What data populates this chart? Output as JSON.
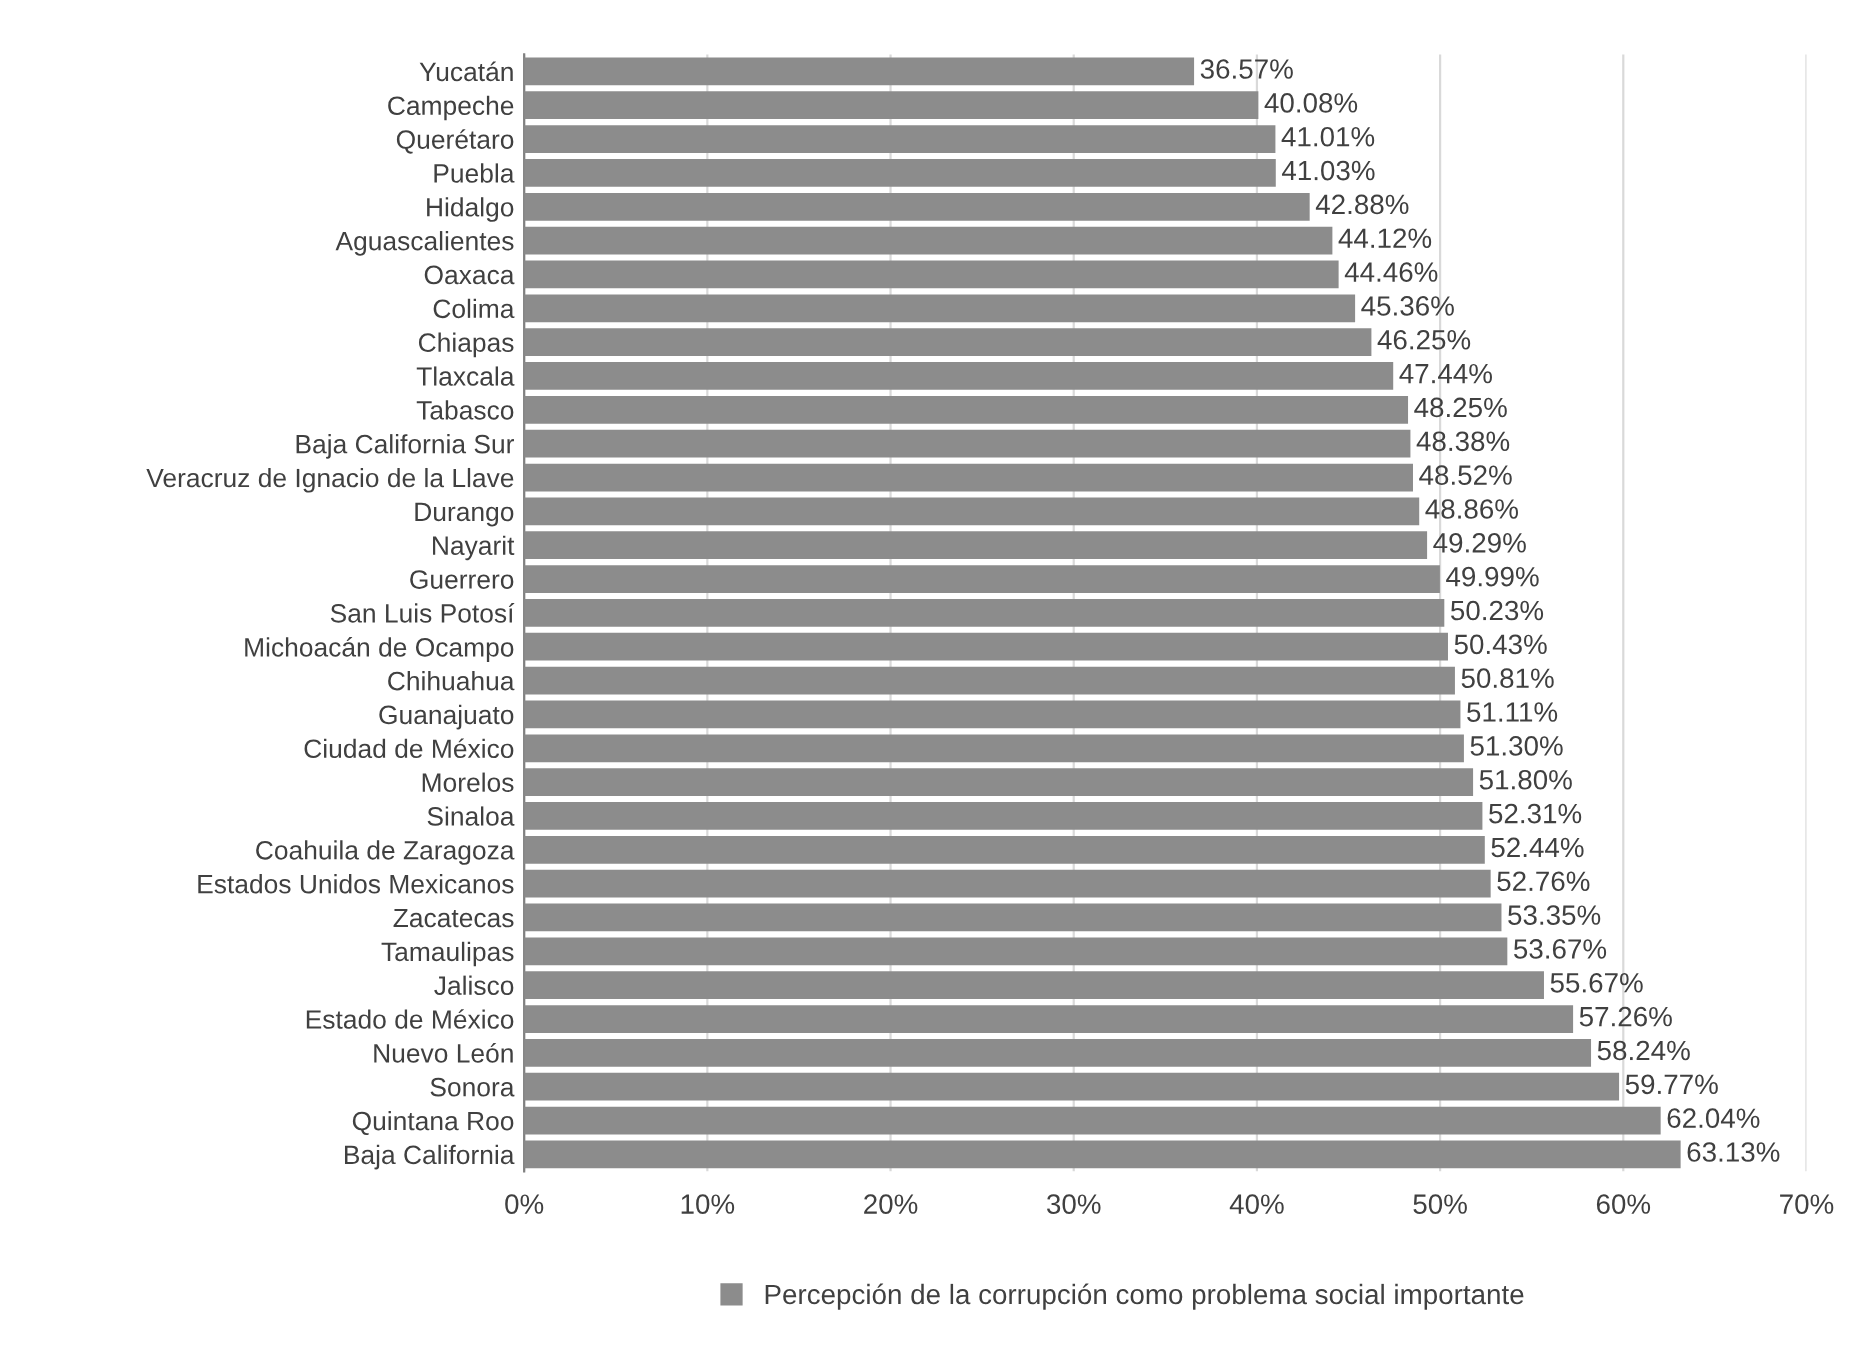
{
  "chart_data": {
    "type": "bar",
    "orientation": "horizontal",
    "categories": [
      "Yucatán",
      "Campeche",
      "Querétaro",
      "Puebla",
      "Hidalgo",
      "Aguascalientes",
      "Oaxaca",
      "Colima",
      "Chiapas",
      "Tlaxcala",
      "Tabasco",
      "Baja California Sur",
      "Veracruz de Ignacio de la Llave",
      "Durango",
      "Nayarit",
      "Guerrero",
      "San Luis Potosí",
      "Michoacán de Ocampo",
      "Chihuahua",
      "Guanajuato",
      "Ciudad de México",
      "Morelos",
      "Sinaloa",
      "Coahuila de Zaragoza",
      "Estados Unidos Mexicanos",
      "Zacatecas",
      "Tamaulipas",
      "Jalisco",
      "Estado de México",
      "Nuevo León",
      "Sonora",
      "Quintana Roo",
      "Baja California"
    ],
    "series": [
      {
        "name": "Percepción de la corrupción como problema social importante",
        "color": "#8c8c8c",
        "values": [
          36.57,
          40.08,
          41.01,
          41.03,
          42.88,
          44.12,
          44.46,
          45.36,
          46.25,
          47.44,
          48.25,
          48.38,
          48.52,
          48.86,
          49.29,
          49.99,
          50.23,
          50.43,
          50.81,
          51.11,
          51.3,
          51.8,
          52.31,
          52.44,
          52.76,
          53.35,
          53.67,
          55.67,
          57.26,
          58.24,
          59.77,
          62.04,
          63.13
        ],
        "value_labels": [
          "36.57%",
          "40.08%",
          "41.01%",
          "41.03%",
          "42.88%",
          "44.12%",
          "44.46%",
          "45.36%",
          "46.25%",
          "47.44%",
          "48.25%",
          "48.38%",
          "48.52%",
          "48.86%",
          "49.29%",
          "49.99%",
          "50.23%",
          "50.43%",
          "50.81%",
          "51.11%",
          "51.30%",
          "51.80%",
          "52.31%",
          "52.44%",
          "52.76%",
          "53.35%",
          "53.67%",
          "55.67%",
          "57.26%",
          "58.24%",
          "59.77%",
          "62.04%",
          "63.13%"
        ]
      }
    ],
    "xlim": [
      0,
      70
    ],
    "xticks": [
      {
        "value": 0,
        "label": "0%"
      },
      {
        "value": 10,
        "label": "10%"
      },
      {
        "value": 20,
        "label": "20%"
      },
      {
        "value": 30,
        "label": "30%"
      },
      {
        "value": 40,
        "label": "40%"
      },
      {
        "value": 50,
        "label": "50%"
      },
      {
        "value": 60,
        "label": "60%"
      },
      {
        "value": 70,
        "label": "70%"
      }
    ],
    "grid": "x",
    "legend": "bottom"
  }
}
